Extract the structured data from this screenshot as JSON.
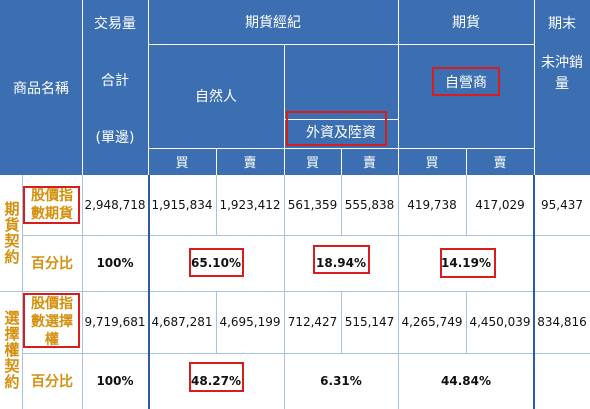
{
  "header": {
    "product_name": "商品名稱",
    "volume_lines": [
      "交易量",
      "合計",
      "(單邊)"
    ],
    "futures_broker": "期貨經紀",
    "natural_person": "自然人",
    "foreign_mainland": "外資及陸資",
    "futures": "期貨",
    "proprietary": "自營商",
    "end_of_period_lines": [
      "期末",
      "未沖銷",
      "量"
    ],
    "buy": "買",
    "sell": "賣"
  },
  "groups": [
    {
      "label": "期貨契約",
      "product": "股價指數期貨",
      "row": {
        "total": "2,948,718",
        "natural_buy": "1,915,834",
        "natural_sell": "1,923,412",
        "foreign_buy": "561,359",
        "foreign_sell": "555,838",
        "prop_buy": "419,738",
        "prop_sell": "417,029",
        "open_interest": "95,437"
      },
      "pct_label": "百分比",
      "pct": {
        "total": "100%",
        "natural": "65.10%",
        "foreign": "18.94%",
        "prop": "14.19%"
      }
    },
    {
      "label": "選擇權契約",
      "product": "股價指數選擇權",
      "row": {
        "total": "9,719,681",
        "natural_buy": "4,687,281",
        "natural_sell": "4,695,199",
        "foreign_buy": "712,427",
        "foreign_sell": "515,147",
        "prop_buy": "4,265,749",
        "prop_sell": "4,450,039",
        "open_interest": "834,816"
      },
      "pct_label": "百分比",
      "pct": {
        "total": "100%",
        "natural": "48.27%",
        "foreign": "6.31%",
        "prop": "44.84%"
      }
    }
  ],
  "colors": {
    "header_bg": "#3b6fb2",
    "accent_gold": "#d4900f",
    "highlight_red": "#d81d1d"
  }
}
